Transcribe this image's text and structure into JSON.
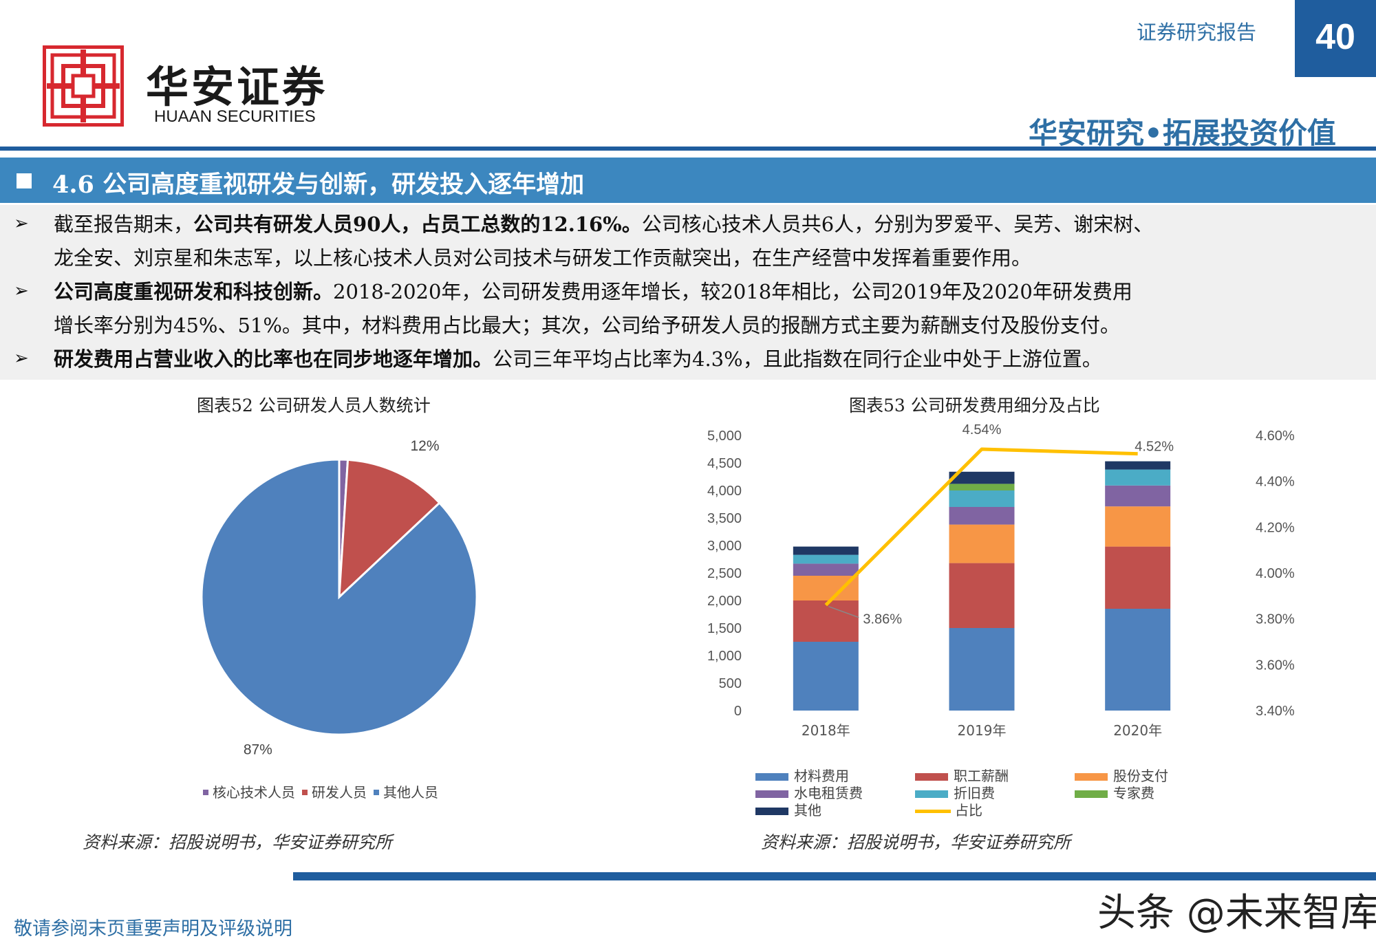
{
  "header": {
    "logo_cn": "华安证券",
    "logo_en": "HUAAN SECURITIES",
    "report_type": "证券研究报告",
    "page_number": "40",
    "slogan": "华安研究•拓展投资价值"
  },
  "section": {
    "title": "4.6 公司高度重视研发与创新，研发投入逐年增加"
  },
  "bullets": [
    {
      "line1_prefix": "截至报告期末，",
      "line1_bold": "公司共有研发人员90人，占员工总数的12.16%。",
      "line1_rest": "公司核心技术人员共6人，分别为罗爱平、吴芳、谢宋树、",
      "line2": "龙全安、刘京星和朱志军，以上核心技术人员对公司技术与研发工作贡献突出，在生产经营中发挥着重要作用。"
    },
    {
      "line1_bold": "公司高度重视研发和科技创新。",
      "line1_rest": "2018-2020年，公司研发费用逐年增长，较2018年相比，公司2019年及2020年研发费用",
      "line2": "增长率分别为45%、51%。其中，材料费用占比最大；其次，公司给予研发人员的报酬方式主要为薪酬支付及股份支付。"
    },
    {
      "line1_bold": "研发费用占营业收入的比率也在同步地逐年增加。",
      "line1_rest": "公司三年平均占比率为4.3%，且此指数在同行企业中处于上游位置。"
    }
  ],
  "bullet_symbol": "➢",
  "pie_chart_title": "图表52 公司研发人员人数统计",
  "bar_chart_title": "图表53 公司研发费用细分及占比",
  "chart_data": [
    {
      "type": "pie",
      "title": "图表52 公司研发人员人数统计",
      "slices": [
        {
          "name": "核心技术人员",
          "value": 1,
          "label": "1%",
          "color": "#8064a2"
        },
        {
          "name": "研发人员",
          "value": 12,
          "label": "12%",
          "color": "#c0504d"
        },
        {
          "name": "其他人员",
          "value": 87,
          "label": "87%",
          "color": "#4f81bd"
        }
      ],
      "legend_position": "bottom"
    },
    {
      "type": "bar",
      "stacked": true,
      "title": "图表53 公司研发费用细分及占比",
      "categories": [
        "2018年",
        "2019年",
        "2020年"
      ],
      "series": [
        {
          "name": "材料费用",
          "color": "#4f81bd",
          "values": [
            1250,
            1500,
            1850
          ]
        },
        {
          "name": "职工薪酬",
          "color": "#c0504d",
          "values": [
            750,
            1180,
            1130
          ]
        },
        {
          "name": "股份支付",
          "color": "#f79646",
          "values": [
            450,
            700,
            730
          ]
        },
        {
          "name": "水电租赁费",
          "color": "#8064a2",
          "values": [
            220,
            320,
            380
          ]
        },
        {
          "name": "折旧费",
          "color": "#4bacc6",
          "values": [
            160,
            300,
            290
          ]
        },
        {
          "name": "专家费",
          "color": "#70ad47",
          "values": [
            0,
            120,
            0
          ]
        },
        {
          "name": "其他",
          "color": "#1f3864",
          "values": [
            150,
            220,
            150
          ]
        }
      ],
      "line_series": {
        "name": "占比",
        "color": "#ffc000",
        "values": [
          3.86,
          4.54,
          4.52
        ],
        "labels": [
          "3.86%",
          "4.54%",
          "4.52%"
        ]
      },
      "y_left": {
        "min": 0,
        "max": 5000,
        "step": 500,
        "ticks": [
          "0",
          "500",
          "1,000",
          "1,500",
          "2,000",
          "2,500",
          "3,000",
          "3,500",
          "4,000",
          "4,500",
          "5,000"
        ]
      },
      "y_right": {
        "min": 3.4,
        "max": 4.6,
        "ticks": [
          "3.40%",
          "3.60%",
          "3.80%",
          "4.00%",
          "4.20%",
          "4.40%",
          "4.60%"
        ]
      },
      "legend_position": "bottom"
    }
  ],
  "sources": {
    "left": "资料来源：招股说明书，华安证券研究所",
    "right": "资料来源：招股说明书，华安证券研究所"
  },
  "footer": {
    "disclaimer": "敬请参阅末页重要声明及评级说明",
    "watermark": "头条 @未来智库"
  }
}
